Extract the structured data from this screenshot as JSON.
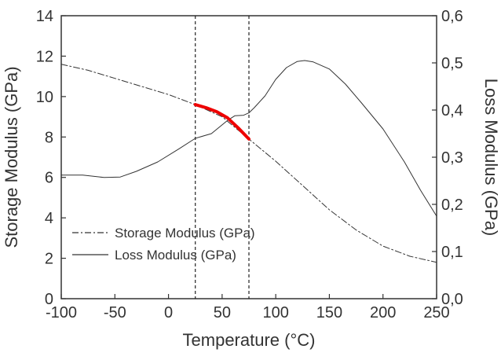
{
  "chart_data": {
    "type": "line",
    "xlabel": "Temperature (°C)",
    "ylabel_left": "Storage Modulus (GPa)",
    "ylabel_right": "Loss Modulus (GPa)",
    "xlim": [
      -100,
      250
    ],
    "ylim_left": [
      0,
      14
    ],
    "ylim_right": [
      0.0,
      0.6
    ],
    "x_ticks": [
      "-100",
      "-50",
      "0",
      "50",
      "100",
      "150",
      "200",
      "250"
    ],
    "y_left_ticks": [
      "0",
      "2",
      "4",
      "6",
      "8",
      "10",
      "12",
      "14"
    ],
    "y_right_ticks": [
      "0,0",
      "0,1",
      "0,2",
      "0,3",
      "0,4",
      "0,5",
      "0,6"
    ],
    "vertical_lines_x": [
      25,
      75
    ],
    "series": [
      {
        "name": "Storage Modulus (GPa)",
        "axis": "left",
        "style": "dash-dot",
        "color": "#333333",
        "x": [
          -100,
          -75,
          -50,
          -25,
          0,
          25,
          50,
          75,
          100,
          125,
          150,
          175,
          200,
          225,
          250
        ],
        "y": [
          11.6,
          11.3,
          10.9,
          10.5,
          10.1,
          9.6,
          9.0,
          7.9,
          6.8,
          5.6,
          4.4,
          3.4,
          2.6,
          2.1,
          1.8
        ]
      },
      {
        "name": "Loss Modulus (GPa)",
        "axis": "right",
        "style": "solid",
        "color": "#333333",
        "x": [
          -100,
          -80,
          -60,
          -45,
          -30,
          -10,
          10,
          25,
          40,
          55,
          62,
          70,
          75,
          80,
          90,
          100,
          110,
          120,
          127,
          135,
          150,
          165,
          180,
          200,
          220,
          235,
          250
        ],
        "y": [
          0.262,
          0.262,
          0.257,
          0.258,
          0.27,
          0.29,
          0.318,
          0.34,
          0.35,
          0.378,
          0.388,
          0.389,
          0.394,
          0.405,
          0.43,
          0.465,
          0.49,
          0.503,
          0.505,
          0.502,
          0.487,
          0.455,
          0.415,
          0.36,
          0.29,
          0.23,
          0.175
        ]
      },
      {
        "axis": "left",
        "style": "solid-thick",
        "color": "#ee0000",
        "x": [
          25,
          35,
          45,
          55,
          65,
          75
        ],
        "y": [
          9.6,
          9.45,
          9.25,
          8.95,
          8.45,
          7.9
        ]
      }
    ],
    "legend": {
      "placement": "bottom-left",
      "entries": [
        "Storage Modulus (GPa)",
        "Loss Modulus (GPa)"
      ]
    }
  }
}
